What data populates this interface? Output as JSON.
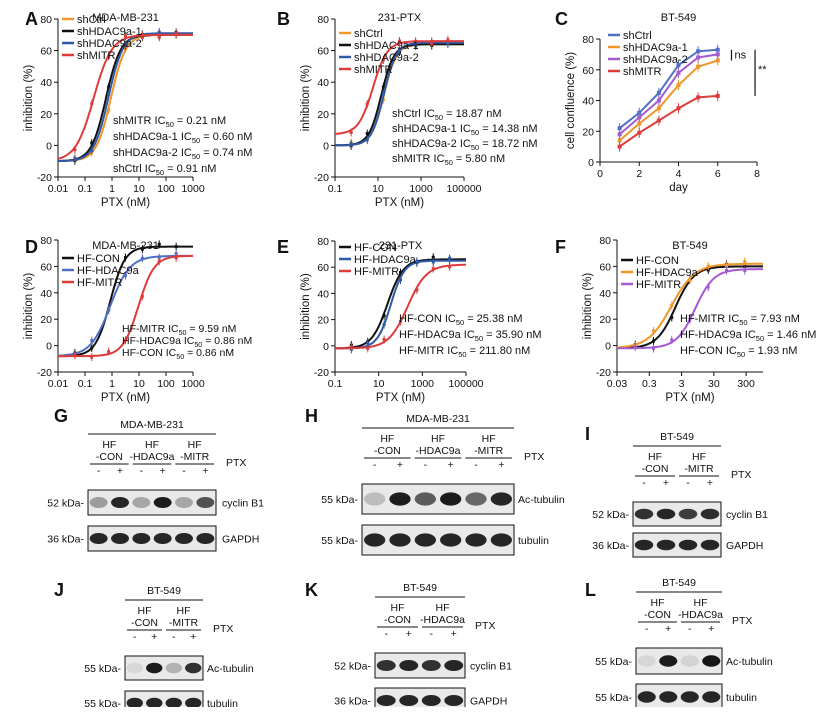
{
  "colors": {
    "black": "#111111",
    "orange": "#f0962a",
    "blue": "#2f5aa8",
    "red": "#de3b3b",
    "purple": "#a25bd0",
    "lightblue": "#4f6fc4"
  },
  "chart_data": [
    {
      "id": "A",
      "type": "line",
      "letter": "A",
      "title": "MDA-MB-231",
      "xlabel": "PTX (nM)",
      "ylabel": "inhibition (%)",
      "xscale": "log",
      "xlim": [
        0.01,
        1000
      ],
      "ylim": [
        -20,
        80
      ],
      "xticks": [
        0.01,
        0.1,
        1,
        10,
        100,
        1000
      ],
      "xtick_labels": [
        "0.01",
        "0.1",
        "1",
        "10",
        "100",
        "1000"
      ],
      "yticks": [
        -20,
        0,
        20,
        40,
        60,
        80
      ],
      "ytick_labels": [
        "-20",
        "0",
        "20",
        "40",
        "60",
        "80"
      ],
      "legend": "top-left",
      "series": [
        {
          "name": "shCtrl",
          "color": "#f0962a",
          "ic50": 0.91,
          "bottom": -10,
          "top": 70,
          "hill": 1.6
        },
        {
          "name": "shHDAC9a-1",
          "color": "#111111",
          "ic50": 0.6,
          "bottom": -10,
          "top": 70,
          "hill": 1.6
        },
        {
          "name": "shHDAC9a-2",
          "color": "#2f5aa8",
          "ic50": 0.74,
          "bottom": -10,
          "top": 71,
          "hill": 1.6
        },
        {
          "name": "shMITR",
          "color": "#de3b3b",
          "ic50": 0.21,
          "bottom": -10,
          "top": 70,
          "hill": 1.3
        }
      ],
      "annotations": [
        {
          "pre": "shMITR IC",
          "post": " = 0.21 nM"
        },
        {
          "pre": "shHDAC9a-1 IC",
          "post": " = 0.60 nM"
        },
        {
          "pre": "shHDAC9a-2 IC",
          "post": " = 0.74 nM"
        },
        {
          "pre": "shCtrl IC",
          "post": " = 0.91 nM"
        }
      ]
    },
    {
      "id": "B",
      "type": "line",
      "letter": "B",
      "title": "231-PTX",
      "xlabel": "PTX (nM)",
      "ylabel": "inhibition (%)",
      "xscale": "log",
      "xlim": [
        0.1,
        100000
      ],
      "ylim": [
        -20,
        80
      ],
      "xticks": [
        0.1,
        10,
        1000,
        100000
      ],
      "xtick_labels": [
        "0.1",
        "10",
        "1000",
        "100000"
      ],
      "yticks": [
        -20,
        0,
        20,
        40,
        60,
        80
      ],
      "ytick_labels": [
        "-20",
        "0",
        "20",
        "40",
        "60",
        "80"
      ],
      "legend": "top-left",
      "series": [
        {
          "name": "shCtrl",
          "color": "#f0962a",
          "ic50": 18.87,
          "bottom": 0,
          "top": 64,
          "hill": 1.5
        },
        {
          "name": "shHDAC9a-1",
          "color": "#111111",
          "ic50": 14.38,
          "bottom": 0,
          "top": 64,
          "hill": 1.5
        },
        {
          "name": "shHDAC9a-2",
          "color": "#2f5aa8",
          "ic50": 18.72,
          "bottom": 0,
          "top": 65,
          "hill": 1.5
        },
        {
          "name": "shMITR",
          "color": "#de3b3b",
          "ic50": 5.8,
          "bottom": 7,
          "top": 66,
          "hill": 1.3
        }
      ],
      "annotations": [
        {
          "pre": "shCtrl IC",
          "post": " = 18.87 nM"
        },
        {
          "pre": "shHDAC9a-1 IC",
          "post": " = 14.38 nM"
        },
        {
          "pre": "shHDAC9a-2 IC",
          "post": " = 18.72 nM"
        },
        {
          "pre": "shMITR IC",
          "post": " = 5.80 nM"
        }
      ]
    },
    {
      "id": "C",
      "type": "line",
      "letter": "C",
      "title": "BT-549",
      "xlabel": "day",
      "ylabel": "cell confluence (%)",
      "xscale": "linear",
      "xlim": [
        0,
        8
      ],
      "ylim": [
        0,
        80
      ],
      "xticks": [
        0,
        2,
        4,
        6,
        8
      ],
      "xtick_labels": [
        "0",
        "2",
        "4",
        "6",
        "8"
      ],
      "yticks": [
        0,
        20,
        40,
        60,
        80
      ],
      "ytick_labels": [
        "0",
        "20",
        "40",
        "60",
        "80"
      ],
      "legend": "top-left",
      "series": [
        {
          "name": "shCtrl",
          "color": "#4f6fc4",
          "x": [
            1,
            2,
            3,
            4,
            5,
            6
          ],
          "values": [
            22,
            32,
            45,
            63,
            72,
            73
          ]
        },
        {
          "name": "shHDAC9a-1",
          "color": "#f0962a",
          "x": [
            1,
            2,
            3,
            4,
            5,
            6
          ],
          "values": [
            14,
            25,
            35,
            50,
            62,
            66
          ]
        },
        {
          "name": "shHDAC9a-2",
          "color": "#a25bd0",
          "x": [
            1,
            2,
            3,
            4,
            5,
            6
          ],
          "values": [
            18,
            29,
            40,
            58,
            68,
            70
          ]
        },
        {
          "name": "shMITR",
          "color": "#de3b3b",
          "x": [
            1,
            2,
            3,
            4,
            5,
            6
          ],
          "values": [
            10,
            19,
            27,
            35,
            42,
            43
          ]
        }
      ],
      "sig_labels": [
        "ns",
        "**"
      ]
    },
    {
      "id": "D",
      "type": "line",
      "letter": "D",
      "title": "MDA-MB-231",
      "xlabel": "PTX (nM)",
      "ylabel": "inhibition (%)",
      "xscale": "log",
      "xlim": [
        0.01,
        1000
      ],
      "ylim": [
        -20,
        80
      ],
      "xticks": [
        0.01,
        0.1,
        1,
        10,
        100,
        1000
      ],
      "xtick_labels": [
        "0.01",
        "0.1",
        "1",
        "10",
        "100",
        "1000"
      ],
      "yticks": [
        -20,
        0,
        20,
        40,
        60,
        80
      ],
      "ytick_labels": [
        "-20",
        "0",
        "20",
        "40",
        "60",
        "80"
      ],
      "legend": "top-left",
      "series": [
        {
          "name": "HF-CON",
          "color": "#111111",
          "ic50": 0.86,
          "bottom": -8,
          "top": 75,
          "hill": 1.6
        },
        {
          "name": "HF-HDAC9a",
          "color": "#4f6fc4",
          "ic50": 0.86,
          "bottom": -8,
          "top": 68,
          "hill": 1.2
        },
        {
          "name": "HF-MITR",
          "color": "#de3b3b",
          "ic50": 9.59,
          "bottom": -8,
          "top": 68,
          "hill": 1.5
        }
      ],
      "annotations": [
        {
          "pre": "HF-MITR IC",
          "post": " = 9.59 nM"
        },
        {
          "pre": "HF-HDAC9a IC",
          "post": " = 0.86 nM"
        },
        {
          "pre": "HF-CON IC",
          "post": " = 0.86 nM"
        }
      ]
    },
    {
      "id": "E",
      "type": "line",
      "letter": "E",
      "title": "231-PTX",
      "xlabel": "PTX (nM)",
      "ylabel": "inhibition (%)",
      "xscale": "log",
      "xlim": [
        0.1,
        100000
      ],
      "ylim": [
        -20,
        80
      ],
      "xticks": [
        0.1,
        10,
        1000,
        100000
      ],
      "xtick_labels": [
        "0.1",
        "10",
        "1000",
        "100000"
      ],
      "yticks": [
        -20,
        0,
        20,
        40,
        60,
        80
      ],
      "ytick_labels": [
        "-20",
        "0",
        "20",
        "40",
        "60",
        "80"
      ],
      "legend": "top-left",
      "series": [
        {
          "name": "HF-CON",
          "color": "#111111",
          "ic50": 25.38,
          "bottom": -2,
          "top": 66,
          "hill": 1.2
        },
        {
          "name": "HF-HDAC9a",
          "color": "#2f5aa8",
          "ic50": 35.9,
          "bottom": -2,
          "top": 65,
          "hill": 1.4
        },
        {
          "name": "HF-MITR",
          "color": "#de3b3b",
          "ic50": 211.8,
          "bottom": -2,
          "top": 62,
          "hill": 1.0
        }
      ],
      "annotations": [
        {
          "pre": "HF-CON IC",
          "post": " = 25.38 nM"
        },
        {
          "pre": "HF-HDAC9a IC",
          "post": " = 35.90 nM"
        },
        {
          "pre": "HF-MITR IC",
          "post": " = 211.80 nM"
        }
      ]
    },
    {
      "id": "F",
      "type": "line",
      "letter": "F",
      "title": "BT-549",
      "xlabel": "PTX (nM)",
      "ylabel": "inhibition (%)",
      "xscale": "log",
      "xlim": [
        0.03,
        1000
      ],
      "ylim": [
        -20,
        80
      ],
      "xticks": [
        0.03,
        0.3,
        3,
        30,
        300
      ],
      "xtick_labels": [
        "0.03",
        "0.3",
        "3",
        "30",
        "300"
      ],
      "yticks": [
        -20,
        0,
        20,
        40,
        60,
        80
      ],
      "ytick_labels": [
        "-20",
        "0",
        "20",
        "40",
        "60",
        "80"
      ],
      "legend": "top-left",
      "series": [
        {
          "name": "HF-CON",
          "color": "#111111",
          "ic50": 1.93,
          "bottom": -2,
          "top": 60,
          "hill": 1.5
        },
        {
          "name": "HF-HDAC9a",
          "color": "#f0962a",
          "ic50": 1.46,
          "bottom": -2,
          "top": 62,
          "hill": 1.2
        },
        {
          "name": "HF-MITR",
          "color": "#a25bd0",
          "ic50": 7.93,
          "bottom": -2,
          "top": 58,
          "hill": 1.5
        }
      ],
      "annotations": [
        {
          "pre": "HF-MITR IC",
          "post": " = 7.93 nM"
        },
        {
          "pre": "HF-HDAC9a IC",
          "post": " = 1.46 nM"
        },
        {
          "pre": "HF-CON IC",
          "post": " = 1.93 nM"
        }
      ]
    }
  ],
  "ic_sub": "50",
  "blots": {
    "G": {
      "letter": "G",
      "cell": "MDA-MB-231",
      "groups": [
        [
          "HF",
          "-CON"
        ],
        [
          "HF",
          "-HDAC9a"
        ],
        [
          "HF",
          "-MITR"
        ]
      ],
      "treatment": "PTX",
      "signs": [
        "-",
        "+"
      ],
      "rows": [
        {
          "marker": "52 kDa-",
          "label": "cyclin B1"
        },
        {
          "marker": "36 kDa-",
          "label": "GAPDH"
        }
      ]
    },
    "H": {
      "letter": "H",
      "cell": "MDA-MB-231",
      "groups": [
        [
          "HF",
          "-CON"
        ],
        [
          "HF",
          "-HDAC9a"
        ],
        [
          "HF",
          "-MITR"
        ]
      ],
      "treatment": "PTX",
      "signs": [
        "-",
        "+"
      ],
      "rows": [
        {
          "marker": "55 kDa-",
          "label": "Ac-tubulin"
        },
        {
          "marker": "55 kDa-",
          "label": "tubulin"
        }
      ]
    },
    "I": {
      "letter": "I",
      "cell": "BT-549",
      "groups": [
        [
          "HF",
          "-CON"
        ],
        [
          "HF",
          "-MITR"
        ]
      ],
      "treatment": "PTX",
      "signs": [
        "-",
        "+"
      ],
      "rows": [
        {
          "marker": "52 kDa-",
          "label": "cyclin B1"
        },
        {
          "marker": "36 kDa-",
          "label": "GAPDH"
        }
      ]
    },
    "J": {
      "letter": "J",
      "cell": "BT-549",
      "groups": [
        [
          "HF",
          "-CON"
        ],
        [
          "HF",
          "-MITR"
        ]
      ],
      "treatment": "PTX",
      "signs": [
        "-",
        "+"
      ],
      "rows": [
        {
          "marker": "55 kDa-",
          "label": "Ac-tubulin"
        },
        {
          "marker": "55 kDa-",
          "label": "tubulin"
        }
      ]
    },
    "K": {
      "letter": "K",
      "cell": "BT-549",
      "groups": [
        [
          "HF",
          "-CON"
        ],
        [
          "HF",
          "-HDAC9a"
        ]
      ],
      "treatment": "PTX",
      "signs": [
        "-",
        "+"
      ],
      "rows": [
        {
          "marker": "52 kDa-",
          "label": "cyclin B1"
        },
        {
          "marker": "36 kDa-",
          "label": "GAPDH"
        }
      ]
    },
    "L": {
      "letter": "L",
      "cell": "BT-549",
      "groups": [
        [
          "HF",
          "-CON"
        ],
        [
          "HF",
          "-HDAC9a"
        ]
      ],
      "treatment": "PTX",
      "signs": [
        "-",
        "+"
      ],
      "rows": [
        {
          "marker": "55 kDa-",
          "label": "Ac-tubulin"
        },
        {
          "marker": "55 kDa-",
          "label": "tubulin"
        }
      ]
    }
  },
  "band_intensity": {
    "G": [
      [
        0.35,
        0.9,
        0.3,
        0.95,
        0.3,
        0.7
      ],
      [
        0.9,
        0.9,
        0.9,
        0.9,
        0.9,
        0.9
      ]
    ],
    "H": [
      [
        0.2,
        0.95,
        0.65,
        0.95,
        0.6,
        0.9
      ],
      [
        0.9,
        0.9,
        0.9,
        0.9,
        0.9,
        0.9
      ]
    ],
    "I": [
      [
        0.85,
        0.9,
        0.8,
        0.88
      ],
      [
        0.9,
        0.9,
        0.9,
        0.9
      ]
    ],
    "J": [
      [
        0.05,
        0.95,
        0.25,
        0.85
      ],
      [
        0.9,
        0.9,
        0.9,
        0.9
      ]
    ],
    "K": [
      [
        0.85,
        0.9,
        0.85,
        0.9
      ],
      [
        0.9,
        0.9,
        0.9,
        0.9
      ]
    ],
    "L": [
      [
        0.05,
        0.95,
        0.1,
        0.98
      ],
      [
        0.9,
        0.9,
        0.9,
        0.9
      ]
    ]
  }
}
